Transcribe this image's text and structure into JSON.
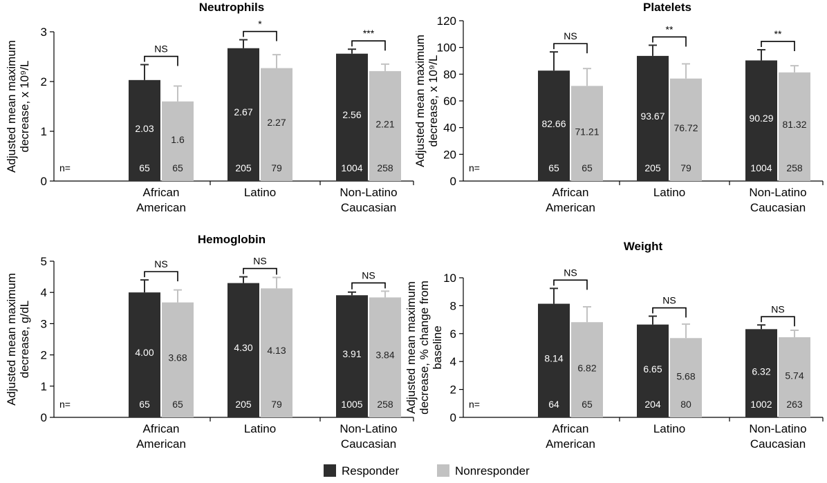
{
  "legend": {
    "position": "bottom-center",
    "items": [
      {
        "label": "Responder",
        "color": "#2e2e2e"
      },
      {
        "label": "Nonresponder",
        "color": "#c2c2c2"
      }
    ]
  },
  "chart_data": [
    {
      "type": "bar",
      "title": "Neutrophils",
      "ylabel": [
        "Adjusted mean maximum",
        "decrease, x 10⁹/L"
      ],
      "ylim": [
        0,
        3
      ],
      "yticks": [
        0,
        1,
        2,
        3
      ],
      "grid": false,
      "n_prefix": "n=",
      "categories": [
        [
          "African",
          "American"
        ],
        [
          "Latino"
        ],
        [
          "Non-Latino",
          "Caucasian"
        ]
      ],
      "series": [
        {
          "name": "Responder",
          "color": "#2e2e2e",
          "values": [
            2.03,
            2.67,
            2.56
          ],
          "labels": [
            "2.03",
            "2.67",
            "2.56"
          ],
          "errors": [
            0.31,
            0.17,
            0.09
          ],
          "n": [
            "65",
            "205",
            "1004"
          ]
        },
        {
          "name": "Nonresponder",
          "color": "#c2c2c2",
          "values": [
            1.6,
            2.27,
            2.21
          ],
          "labels": [
            "1.6",
            "2.27",
            "2.21"
          ],
          "errors": [
            0.31,
            0.27,
            0.14
          ],
          "n": [
            "65",
            "79",
            "258"
          ]
        }
      ],
      "significance": [
        "NS",
        "*",
        "***"
      ]
    },
    {
      "type": "bar",
      "title": "Platelets",
      "ylabel": [
        "Adjusted mean maximum",
        "decrease, x 10⁹/L"
      ],
      "ylim": [
        0,
        120
      ],
      "yticks": [
        0,
        20,
        40,
        60,
        80,
        100,
        120
      ],
      "grid": false,
      "n_prefix": "n=",
      "categories": [
        [
          "African",
          "American"
        ],
        [
          "Latino"
        ],
        [
          "Non-Latino",
          "Caucasian"
        ]
      ],
      "series": [
        {
          "name": "Responder",
          "color": "#2e2e2e",
          "values": [
            82.66,
            93.67,
            90.29
          ],
          "labels": [
            "82.66",
            "93.67",
            "90.29"
          ],
          "errors": [
            14,
            8,
            8
          ],
          "n": [
            "65",
            "205",
            "1004"
          ]
        },
        {
          "name": "Nonresponder",
          "color": "#c2c2c2",
          "values": [
            71.21,
            76.72,
            81.32
          ],
          "labels": [
            "71.21",
            "76.72",
            "81.32"
          ],
          "errors": [
            13,
            11,
            5
          ],
          "n": [
            "65",
            "79",
            "258"
          ]
        }
      ],
      "significance": [
        "NS",
        "**",
        "**"
      ]
    },
    {
      "type": "bar",
      "title": "Hemoglobin",
      "ylabel": [
        "Adjusted mean maximum",
        "decrease,  g/dL"
      ],
      "ylim": [
        0,
        5
      ],
      "yticks": [
        0,
        1,
        2,
        3,
        4,
        5
      ],
      "grid": false,
      "n_prefix": "n=",
      "categories": [
        [
          "African",
          "American"
        ],
        [
          "Latino"
        ],
        [
          "Non-Latino",
          "Caucasian"
        ]
      ],
      "series": [
        {
          "name": "Responder",
          "color": "#2e2e2e",
          "values": [
            4.0,
            4.3,
            3.91
          ],
          "labels": [
            "4.00",
            "4.30",
            "3.91"
          ],
          "errors": [
            0.4,
            0.2,
            0.1
          ],
          "n": [
            "65",
            "205",
            "1005"
          ]
        },
        {
          "name": "Nonresponder",
          "color": "#c2c2c2",
          "values": [
            3.68,
            4.13,
            3.84
          ],
          "labels": [
            "3.68",
            "4.13",
            "3.84"
          ],
          "errors": [
            0.4,
            0.35,
            0.2
          ],
          "n": [
            "65",
            "79",
            "258"
          ]
        }
      ],
      "significance": [
        "NS",
        "NS",
        "NS"
      ]
    },
    {
      "type": "bar",
      "title": "Weight",
      "ylabel": [
        "Adjusted mean maximum",
        "decrease, % change from",
        "baseline"
      ],
      "ylim": [
        0,
        10
      ],
      "yticks": [
        0,
        2,
        4,
        6,
        8,
        10
      ],
      "grid": false,
      "n_prefix": "n=",
      "categories": [
        [
          "African",
          "American"
        ],
        [
          "Latino"
        ],
        [
          "Non-Latino",
          "Caucasian"
        ]
      ],
      "series": [
        {
          "name": "Responder",
          "color": "#2e2e2e",
          "values": [
            8.14,
            6.65,
            6.32
          ],
          "labels": [
            "8.14",
            "6.65",
            "6.32"
          ],
          "errors": [
            1.1,
            0.6,
            0.3
          ],
          "n": [
            "64",
            "204",
            "1002"
          ]
        },
        {
          "name": "Nonresponder",
          "color": "#c2c2c2",
          "values": [
            6.82,
            5.68,
            5.74
          ],
          "labels": [
            "6.82",
            "5.68",
            "5.74"
          ],
          "errors": [
            1.1,
            1.0,
            0.5
          ],
          "n": [
            "65",
            "80",
            "263"
          ]
        }
      ],
      "significance": [
        "NS",
        "NS",
        "NS"
      ]
    }
  ]
}
